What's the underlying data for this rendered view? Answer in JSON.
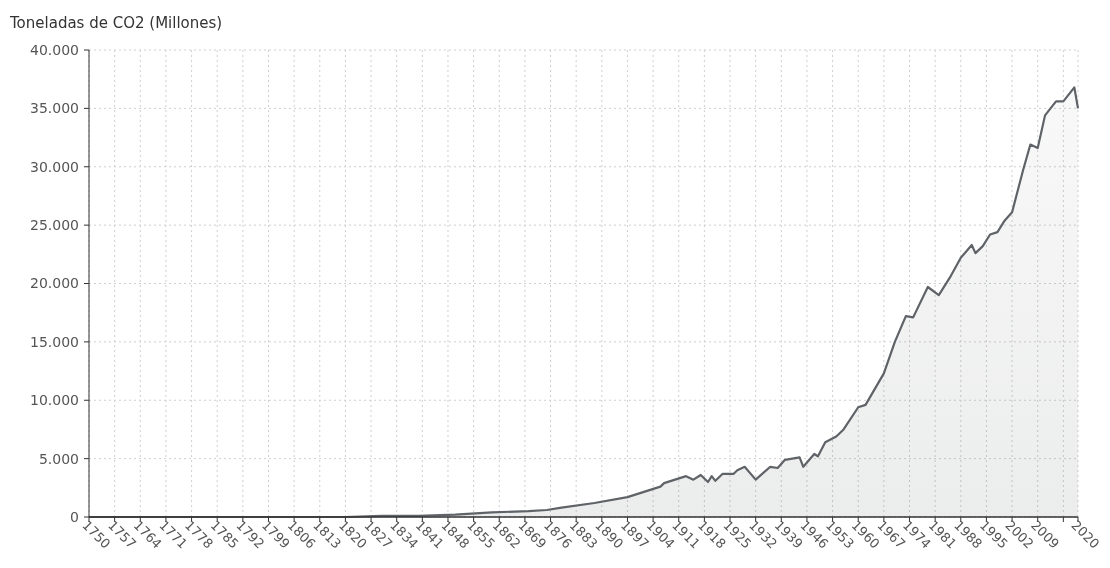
{
  "chart_data": {
    "type": "area",
    "ylabel": "Toneladas de CO2 (Millones)",
    "x": [
      1750,
      1770,
      1790,
      1800,
      1820,
      1830,
      1840,
      1850,
      1860,
      1870,
      1875,
      1879,
      1888,
      1897,
      1906,
      1907,
      1913,
      1915,
      1917,
      1919,
      1920,
      1921,
      1923,
      1926,
      1927,
      1929,
      1932,
      1936,
      1938,
      1940,
      1944,
      1945,
      1948,
      1949,
      1951,
      1954,
      1956,
      1960,
      1962,
      1967,
      1970,
      1973,
      1975,
      1979,
      1982,
      1985,
      1988,
      1991,
      1992,
      1994,
      1996,
      1998,
      2000,
      2002,
      2005,
      2007,
      2009,
      2011,
      2014,
      2016,
      2019,
      2020
    ],
    "series": [
      {
        "color": "#5f6368",
        "values": [
          0,
          0,
          0,
          0,
          0,
          100,
          100,
          200,
          400,
          500,
          600,
          800,
          1200,
          1700,
          2600,
          2900,
          3500,
          3200,
          3600,
          3000,
          3500,
          3100,
          3700,
          3700,
          4000,
          4300,
          3200,
          4300,
          4200,
          4900,
          5100,
          4300,
          5400,
          5200,
          6400,
          6900,
          7500,
          9400,
          9600,
          12300,
          15000,
          17200,
          17100,
          19700,
          19000,
          20500,
          22200,
          23300,
          22600,
          23200,
          24200,
          24400,
          25400,
          26100,
          29700,
          31900,
          31600,
          34400,
          35600,
          35600,
          36800,
          35000
        ]
      }
    ],
    "xlim": [
      1750,
      2020
    ],
    "xticks": [
      1750,
      1757,
      1764,
      1771,
      1778,
      1785,
      1792,
      1799,
      1806,
      1813,
      1820,
      1827,
      1834,
      1841,
      1848,
      1855,
      1862,
      1869,
      1876,
      1883,
      1890,
      1897,
      1904,
      1911,
      1918,
      1925,
      1932,
      1939,
      1946,
      1953,
      1960,
      1967,
      1974,
      1981,
      1988,
      1995,
      2002,
      2009,
      {
        "value": 2016,
        "label": null
      },
      2020
    ],
    "ylim": [
      0,
      40000
    ],
    "yticks": [
      0,
      {
        "value": 5000,
        "label": "5.000"
      },
      {
        "value": 10000,
        "label": "10.000"
      },
      {
        "value": 15000,
        "label": "15.000"
      },
      {
        "value": 20000,
        "label": "20.000"
      },
      {
        "value": 25000,
        "label": "25.000"
      },
      {
        "value": 30000,
        "label": "30.000"
      },
      {
        "value": 35000,
        "label": "35.000"
      },
      {
        "value": 40000,
        "label": "40.000"
      }
    ],
    "grid": true,
    "marker": "none",
    "line_style": "solid"
  }
}
